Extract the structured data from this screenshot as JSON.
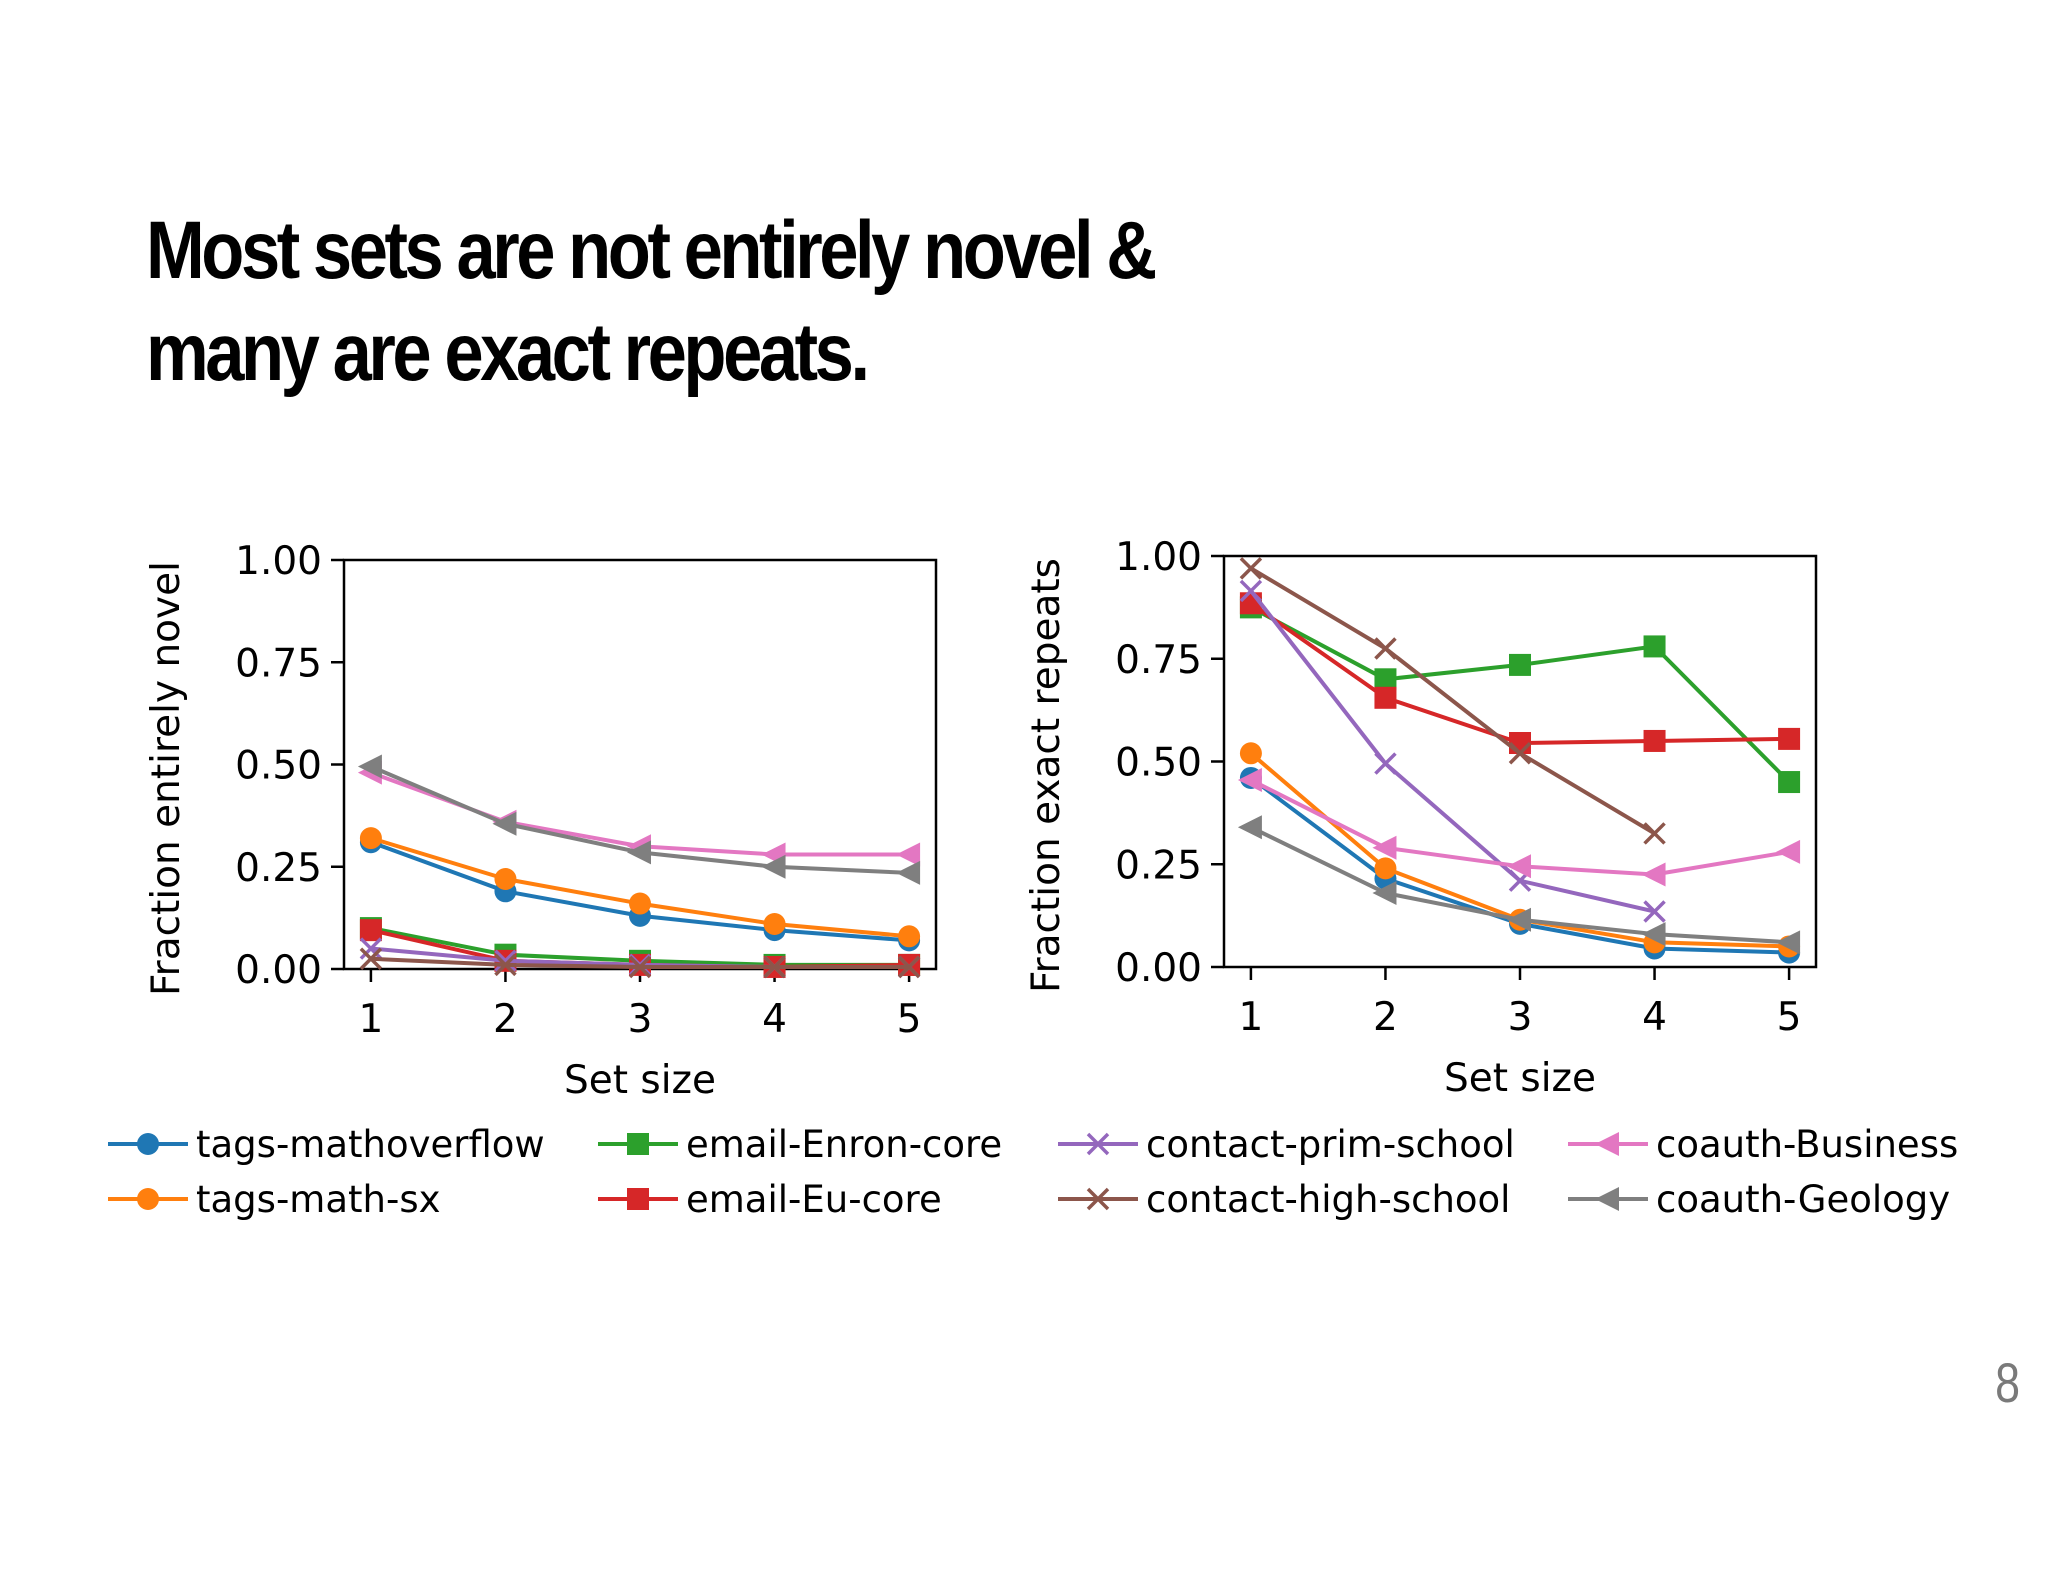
{
  "slide": {
    "title_line1": "Most sets are not entirely novel &",
    "title_line2": "many are exact repeats.",
    "page_number": "8"
  },
  "chart_data": [
    {
      "type": "line",
      "title": "",
      "xlabel": "Set size",
      "ylabel": "Fraction entirely novel",
      "x": [
        1,
        2,
        3,
        4,
        5
      ],
      "xlim": [
        0.8,
        5.2
      ],
      "ylim": [
        0,
        1
      ],
      "xticks": [
        "1",
        "2",
        "3",
        "4",
        "5"
      ],
      "yticks": [
        "0.00",
        "0.25",
        "0.50",
        "0.75",
        "1.00"
      ],
      "grid": false,
      "series": [
        {
          "name": "tags-mathoverflow",
          "values": [
            0.31,
            0.19,
            0.13,
            0.095,
            0.07
          ]
        },
        {
          "name": "tags-math-sx",
          "values": [
            0.32,
            0.22,
            0.16,
            0.11,
            0.08
          ]
        },
        {
          "name": "email-Enron-core",
          "values": [
            0.1,
            0.035,
            0.02,
            0.01,
            0.01
          ]
        },
        {
          "name": "email-Eu-core",
          "values": [
            0.095,
            0.02,
            0.01,
            0.005,
            0.01
          ]
        },
        {
          "name": "contact-prim-school",
          "values": [
            0.05,
            0.02,
            0.01,
            0.005,
            0.005
          ]
        },
        {
          "name": "contact-high-school",
          "values": [
            0.025,
            0.01,
            0.005,
            0.005,
            0.005
          ]
        },
        {
          "name": "coauth-Business",
          "values": [
            0.48,
            0.36,
            0.3,
            0.28,
            0.28
          ]
        },
        {
          "name": "coauth-Geology",
          "values": [
            0.495,
            0.355,
            0.285,
            0.25,
            0.235
          ]
        }
      ]
    },
    {
      "type": "line",
      "title": "",
      "xlabel": "Set size",
      "ylabel": "Fraction exact repeats",
      "x": [
        1,
        2,
        3,
        4,
        5
      ],
      "xlim": [
        0.8,
        5.2
      ],
      "ylim": [
        0,
        1
      ],
      "xticks": [
        "1",
        "2",
        "3",
        "4",
        "5"
      ],
      "yticks": [
        "0.00",
        "0.25",
        "0.50",
        "0.75",
        "1.00"
      ],
      "grid": false,
      "series": [
        {
          "name": "tags-mathoverflow",
          "values": [
            0.46,
            0.215,
            0.105,
            0.045,
            0.035
          ]
        },
        {
          "name": "tags-math-sx",
          "values": [
            0.52,
            0.24,
            0.115,
            0.06,
            0.05
          ]
        },
        {
          "name": "email-Enron-core",
          "values": [
            0.875,
            0.7,
            0.735,
            0.78,
            0.45
          ]
        },
        {
          "name": "email-Eu-core",
          "values": [
            0.885,
            0.655,
            0.545,
            0.55,
            0.555
          ]
        },
        {
          "name": "contact-prim-school",
          "values": [
            0.915,
            0.495,
            0.21,
            0.135,
            null
          ]
        },
        {
          "name": "contact-high-school",
          "values": [
            0.97,
            0.775,
            0.52,
            0.325,
            null
          ]
        },
        {
          "name": "coauth-Business",
          "values": [
            0.455,
            0.29,
            0.245,
            0.225,
            0.28
          ]
        },
        {
          "name": "coauth-Geology",
          "values": [
            0.34,
            0.18,
            0.115,
            0.08,
            0.06
          ]
        }
      ]
    }
  ],
  "legend": {
    "placement": "bottom",
    "items": [
      {
        "name": "tags-mathoverflow",
        "color": "#1f77b4",
        "marker": "circle"
      },
      {
        "name": "tags-math-sx",
        "color": "#ff7f0e",
        "marker": "circle"
      },
      {
        "name": "email-Enron-core",
        "color": "#2ca02c",
        "marker": "square"
      },
      {
        "name": "email-Eu-core",
        "color": "#d62728",
        "marker": "square"
      },
      {
        "name": "contact-prim-school",
        "color": "#9467bd",
        "marker": "x"
      },
      {
        "name": "contact-high-school",
        "color": "#8c564b",
        "marker": "x"
      },
      {
        "name": "coauth-Business",
        "color": "#e377c2",
        "marker": "triangle-left"
      },
      {
        "name": "coauth-Geology",
        "color": "#7f7f7f",
        "marker": "triangle-left"
      }
    ]
  }
}
